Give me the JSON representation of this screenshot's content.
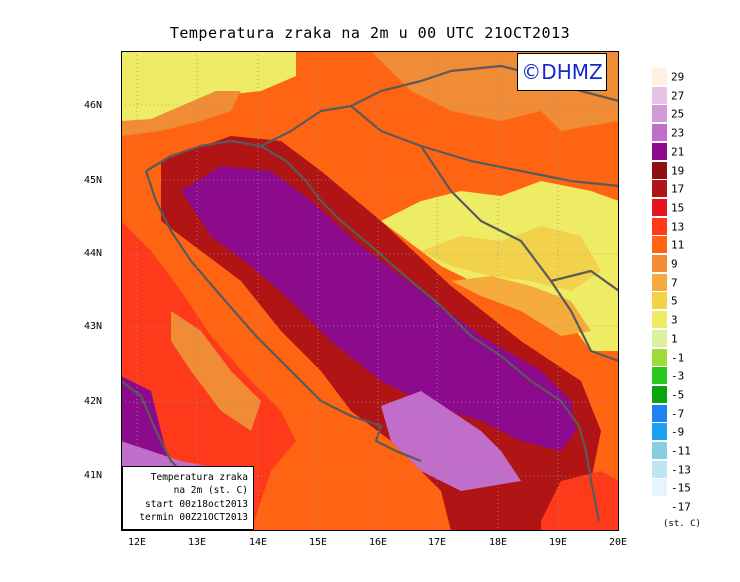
{
  "title": "Temperatura zraka na 2m u 00 UTC 21OCT2013",
  "logo": "©DHMZ",
  "info": {
    "line1": "Temperatura zraka",
    "line2": "na 2m (st. C)",
    "line3": "start 00z18oct2013",
    "line4": "termin 00Z21OCT2013"
  },
  "lat_labels": [
    "46N",
    "45N",
    "44N",
    "43N",
    "42N",
    "41N"
  ],
  "lon_labels": [
    "12E",
    "13E",
    "14E",
    "15E",
    "16E",
    "17E",
    "18E",
    "19E",
    "20E"
  ],
  "legend": {
    "unit": "(st. C)",
    "levels": [
      "29",
      "27",
      "25",
      "23",
      "21",
      "19",
      "17",
      "15",
      "13",
      "11",
      "9",
      "7",
      "5",
      "3",
      "1",
      "-1",
      "-3",
      "-5",
      "-7",
      "-9",
      "-11",
      "-13",
      "-15",
      "-17"
    ],
    "colors": [
      "#fff0e0",
      "#e6c3e6",
      "#d39bd6",
      "#c16ecb",
      "#8c0a8c",
      "#8e0f0f",
      "#b01414",
      "#e6141e",
      "#ff3a1a",
      "#ff6412",
      "#f08c35",
      "#f5ac3c",
      "#f2d24b",
      "#eeeb64",
      "#dcf0a0",
      "#9fdc3a",
      "#28c81e",
      "#0aa50a",
      "#1e82f0",
      "#1ea0f0",
      "#87cee0",
      "#bee6f0",
      "#e4f6fb",
      "#ffffff"
    ]
  }
}
